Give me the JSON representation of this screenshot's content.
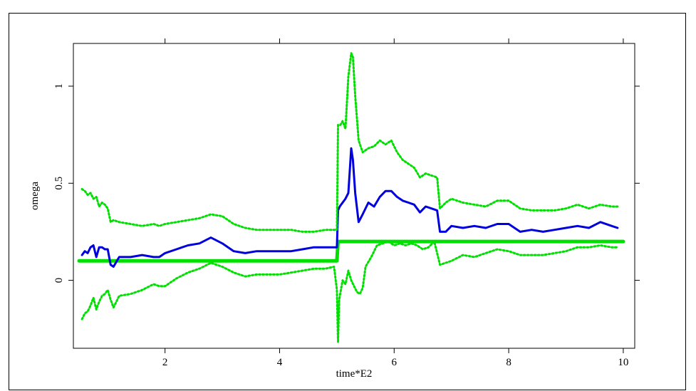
{
  "chart_data": {
    "type": "line",
    "title": "",
    "xlabel": "time*E2",
    "ylabel": "omega",
    "xlim": [
      0.4,
      10.2
    ],
    "ylim": [
      -0.35,
      1.22
    ],
    "x_ticks": [
      2,
      4,
      6,
      8,
      10
    ],
    "x_tick_labels": [
      "2",
      "4",
      "6",
      "8",
      "10"
    ],
    "y_ticks": [
      0,
      0.5,
      1
    ],
    "y_tick_labels": [
      "0",
      "0.5",
      "1"
    ],
    "grid": false,
    "legend": "none",
    "series": [
      {
        "color": "#00e000",
        "style": "solid-thick",
        "x": [
          0.5,
          5.0,
          5.02,
          5.08,
          10.0
        ],
        "y": [
          0.1,
          0.1,
          0.2,
          0.2,
          0.2
        ]
      },
      {
        "color": "#0000dd",
        "style": "solid",
        "x": [
          0.55,
          0.6,
          0.65,
          0.7,
          0.75,
          0.8,
          0.85,
          0.9,
          0.95,
          1.0,
          1.05,
          1.1,
          1.2,
          1.4,
          1.6,
          1.8,
          1.9,
          2.0,
          2.2,
          2.4,
          2.6,
          2.8,
          3.0,
          3.2,
          3.4,
          3.6,
          3.8,
          4.0,
          4.2,
          4.4,
          4.6,
          4.8,
          5.0,
          5.02,
          5.05,
          5.1,
          5.15,
          5.2,
          5.25,
          5.28,
          5.32,
          5.38,
          5.45,
          5.55,
          5.65,
          5.75,
          5.85,
          5.95,
          6.05,
          6.15,
          6.25,
          6.35,
          6.45,
          6.55,
          6.65,
          6.75,
          6.8,
          6.9,
          7.0,
          7.2,
          7.4,
          7.6,
          7.8,
          8.0,
          8.2,
          8.4,
          8.6,
          8.8,
          9.0,
          9.2,
          9.4,
          9.6,
          9.8,
          9.9
        ],
        "y": [
          0.13,
          0.15,
          0.14,
          0.17,
          0.18,
          0.12,
          0.17,
          0.17,
          0.16,
          0.16,
          0.08,
          0.07,
          0.12,
          0.12,
          0.13,
          0.12,
          0.12,
          0.14,
          0.16,
          0.18,
          0.19,
          0.22,
          0.19,
          0.15,
          0.14,
          0.15,
          0.15,
          0.15,
          0.15,
          0.16,
          0.17,
          0.17,
          0.17,
          0.36,
          0.38,
          0.4,
          0.42,
          0.45,
          0.68,
          0.62,
          0.45,
          0.3,
          0.34,
          0.4,
          0.38,
          0.43,
          0.46,
          0.46,
          0.43,
          0.41,
          0.4,
          0.39,
          0.35,
          0.38,
          0.37,
          0.36,
          0.25,
          0.25,
          0.28,
          0.27,
          0.28,
          0.27,
          0.29,
          0.29,
          0.25,
          0.26,
          0.25,
          0.26,
          0.27,
          0.28,
          0.27,
          0.3,
          0.28,
          0.27
        ]
      },
      {
        "color": "#00e000",
        "style": "dotted",
        "x": [
          0.55,
          0.6,
          0.65,
          0.7,
          0.75,
          0.8,
          0.85,
          0.9,
          0.95,
          1.0,
          1.05,
          1.1,
          1.2,
          1.4,
          1.6,
          1.8,
          1.9,
          2.0,
          2.2,
          2.4,
          2.6,
          2.8,
          3.0,
          3.2,
          3.4,
          3.6,
          3.8,
          4.0,
          4.2,
          4.4,
          4.6,
          4.8,
          5.0,
          5.02,
          5.06,
          5.1,
          5.15,
          5.2,
          5.25,
          5.28,
          5.32,
          5.38,
          5.45,
          5.55,
          5.65,
          5.75,
          5.85,
          5.95,
          6.05,
          6.15,
          6.25,
          6.35,
          6.45,
          6.55,
          6.65,
          6.75,
          6.8,
          6.9,
          7.0,
          7.2,
          7.4,
          7.6,
          7.8,
          8.0,
          8.2,
          8.4,
          8.6,
          8.8,
          9.0,
          9.2,
          9.4,
          9.6,
          9.8,
          9.9
        ],
        "y": [
          0.47,
          0.46,
          0.44,
          0.45,
          0.42,
          0.43,
          0.38,
          0.4,
          0.39,
          0.37,
          0.3,
          0.31,
          0.3,
          0.29,
          0.28,
          0.29,
          0.28,
          0.29,
          0.3,
          0.31,
          0.32,
          0.34,
          0.33,
          0.29,
          0.27,
          0.26,
          0.26,
          0.26,
          0.26,
          0.25,
          0.25,
          0.26,
          0.26,
          0.8,
          0.8,
          0.82,
          0.78,
          1.05,
          1.17,
          1.15,
          0.95,
          0.72,
          0.66,
          0.68,
          0.69,
          0.72,
          0.7,
          0.72,
          0.66,
          0.62,
          0.6,
          0.58,
          0.53,
          0.55,
          0.54,
          0.53,
          0.37,
          0.4,
          0.42,
          0.4,
          0.39,
          0.38,
          0.41,
          0.41,
          0.37,
          0.36,
          0.36,
          0.36,
          0.37,
          0.39,
          0.37,
          0.39,
          0.38,
          0.38
        ]
      },
      {
        "color": "#00e000",
        "style": "dotted",
        "x": [
          0.55,
          0.6,
          0.65,
          0.7,
          0.75,
          0.8,
          0.85,
          0.9,
          0.95,
          1.0,
          1.05,
          1.1,
          1.2,
          1.4,
          1.6,
          1.8,
          1.9,
          2.0,
          2.2,
          2.4,
          2.6,
          2.8,
          3.0,
          3.2,
          3.4,
          3.6,
          3.8,
          4.0,
          4.2,
          4.4,
          4.6,
          4.8,
          4.95,
          5.0,
          5.02,
          5.04,
          5.07,
          5.1,
          5.15,
          5.2,
          5.25,
          5.3,
          5.35,
          5.4,
          5.45,
          5.5,
          5.6,
          5.7,
          5.8,
          5.9,
          6.0,
          6.1,
          6.2,
          6.3,
          6.4,
          6.5,
          6.6,
          6.7,
          6.8,
          7.0,
          7.2,
          7.4,
          7.6,
          7.8,
          8.0,
          8.2,
          8.4,
          8.6,
          8.8,
          9.0,
          9.2,
          9.4,
          9.6,
          9.8,
          9.9
        ],
        "y": [
          -0.2,
          -0.17,
          -0.16,
          -0.13,
          -0.09,
          -0.15,
          -0.11,
          -0.08,
          -0.07,
          -0.05,
          -0.1,
          -0.14,
          -0.08,
          -0.07,
          -0.05,
          -0.02,
          -0.03,
          -0.03,
          0.01,
          0.04,
          0.06,
          0.09,
          0.07,
          0.04,
          0.02,
          0.03,
          0.03,
          0.03,
          0.04,
          0.05,
          0.06,
          0.06,
          0.07,
          -0.05,
          -0.32,
          -0.1,
          -0.05,
          0.0,
          -0.02,
          0.05,
          0.0,
          -0.03,
          -0.06,
          -0.07,
          -0.04,
          0.07,
          0.12,
          0.18,
          0.19,
          0.2,
          0.18,
          0.19,
          0.18,
          0.19,
          0.18,
          0.16,
          0.17,
          0.2,
          0.08,
          0.1,
          0.13,
          0.12,
          0.14,
          0.16,
          0.15,
          0.13,
          0.13,
          0.13,
          0.14,
          0.15,
          0.17,
          0.17,
          0.18,
          0.17,
          0.17
        ]
      }
    ]
  }
}
